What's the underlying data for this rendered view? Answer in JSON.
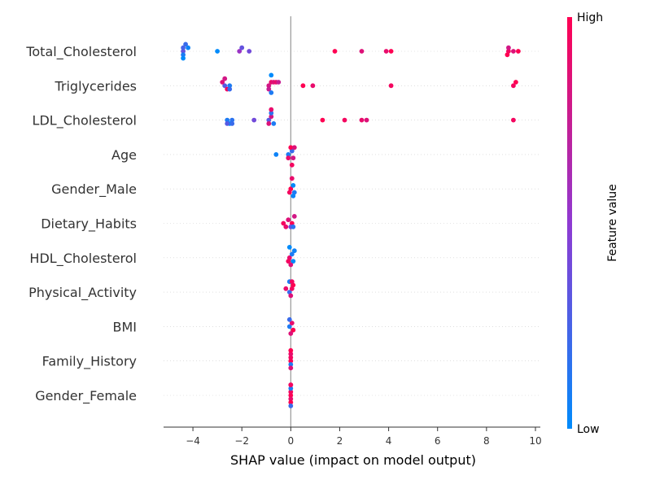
{
  "chart_data": {
    "type": "scatter",
    "xlabel": "SHAP value (impact on model output)",
    "xlim": [
      -5.2,
      10.2
    ],
    "xticks": [
      -4,
      -2,
      0,
      2,
      4,
      6,
      8,
      10
    ],
    "colorbar": {
      "label": "Feature value",
      "high": "High",
      "low": "Low"
    },
    "colors": {
      "low": "#008bfb",
      "high": "#ff0052",
      "grid": "#cccccc",
      "zero_line": "#999999",
      "axis": "#333333"
    },
    "features": [
      {
        "name": "Total_Cholesterol",
        "points": [
          {
            "x": -4.4,
            "v": 0.35
          },
          {
            "x": -4.4,
            "v": 0.25
          },
          {
            "x": -4.4,
            "v": 0.1
          },
          {
            "x": -4.3,
            "v": 0.2
          },
          {
            "x": -4.2,
            "v": 0.05
          },
          {
            "x": -4.4,
            "v": 0.0
          },
          {
            "x": -3.0,
            "v": 0.0
          },
          {
            "x": -2.1,
            "v": 0.55
          },
          {
            "x": -2.0,
            "v": 0.35
          },
          {
            "x": -1.7,
            "v": 0.4
          },
          {
            "x": 1.8,
            "v": 1.0
          },
          {
            "x": 2.9,
            "v": 0.85
          },
          {
            "x": 3.9,
            "v": 0.9
          },
          {
            "x": 4.1,
            "v": 1.0
          },
          {
            "x": 8.9,
            "v": 0.95
          },
          {
            "x": 8.9,
            "v": 0.8
          },
          {
            "x": 8.85,
            "v": 1.0
          },
          {
            "x": 9.1,
            "v": 0.85
          },
          {
            "x": 9.3,
            "v": 1.0
          }
        ]
      },
      {
        "name": "Triglycerides",
        "points": [
          {
            "x": -2.7,
            "v": 0.3
          },
          {
            "x": -2.5,
            "v": 0.1
          },
          {
            "x": -2.8,
            "v": 0.85
          },
          {
            "x": -2.6,
            "v": 0.95
          },
          {
            "x": -2.5,
            "v": 0.2
          },
          {
            "x": -2.7,
            "v": 0.8
          },
          {
            "x": -0.9,
            "v": 0.8
          },
          {
            "x": -0.8,
            "v": 0.9
          },
          {
            "x": -0.9,
            "v": 0.75
          },
          {
            "x": -0.7,
            "v": 0.85
          },
          {
            "x": -0.8,
            "v": 0.1
          },
          {
            "x": -0.6,
            "v": 0.9
          },
          {
            "x": -0.5,
            "v": 0.75
          },
          {
            "x": -0.8,
            "v": 0.0
          },
          {
            "x": 0.5,
            "v": 1.0
          },
          {
            "x": 0.9,
            "v": 0.9
          },
          {
            "x": 4.1,
            "v": 0.95
          },
          {
            "x": 9.1,
            "v": 0.95
          },
          {
            "x": 9.2,
            "v": 1.0
          }
        ]
      },
      {
        "name": "LDL_Cholesterol",
        "points": [
          {
            "x": -2.6,
            "v": 0.1
          },
          {
            "x": -2.4,
            "v": 0.15
          },
          {
            "x": -2.5,
            "v": 0.0
          },
          {
            "x": -2.6,
            "v": 0.3
          },
          {
            "x": -2.4,
            "v": 0.2
          },
          {
            "x": -1.5,
            "v": 0.4
          },
          {
            "x": -0.9,
            "v": 0.3
          },
          {
            "x": -0.8,
            "v": 0.8
          },
          {
            "x": -0.9,
            "v": 0.85
          },
          {
            "x": -0.8,
            "v": 0.15
          },
          {
            "x": -0.7,
            "v": 0.1
          },
          {
            "x": -0.8,
            "v": 0.9
          },
          {
            "x": 1.3,
            "v": 1.0
          },
          {
            "x": 2.2,
            "v": 0.95
          },
          {
            "x": 2.9,
            "v": 0.9
          },
          {
            "x": 3.1,
            "v": 0.85
          },
          {
            "x": 9.1,
            "v": 0.95
          }
        ]
      },
      {
        "name": "Age",
        "points": [
          {
            "x": -0.1,
            "v": 0.1
          },
          {
            "x": 0.05,
            "v": 0.2
          },
          {
            "x": -0.6,
            "v": 0.05
          },
          {
            "x": -0.1,
            "v": 0.9
          },
          {
            "x": 0.0,
            "v": 1.0
          },
          {
            "x": 0.1,
            "v": 0.8
          },
          {
            "x": 0.15,
            "v": 0.85
          },
          {
            "x": 0.05,
            "v": 0.95
          }
        ]
      },
      {
        "name": "Gender_Male",
        "points": [
          {
            "x": 0.0,
            "v": 1.0
          },
          {
            "x": 0.1,
            "v": 0.0
          },
          {
            "x": 0.15,
            "v": 0.1
          },
          {
            "x": -0.05,
            "v": 0.95
          },
          {
            "x": 0.1,
            "v": 0.05
          },
          {
            "x": 0.05,
            "v": 0.9
          }
        ]
      },
      {
        "name": "Dietary_Habits",
        "points": [
          {
            "x": 0.05,
            "v": 1.0
          },
          {
            "x": -0.3,
            "v": 0.95
          },
          {
            "x": -0.1,
            "v": 0.85
          },
          {
            "x": 0.0,
            "v": 0.4
          },
          {
            "x": 0.1,
            "v": 0.15
          },
          {
            "x": -0.2,
            "v": 0.9
          },
          {
            "x": 0.15,
            "v": 0.8
          }
        ]
      },
      {
        "name": "HDL_Cholesterol",
        "points": [
          {
            "x": -0.05,
            "v": 0.9
          },
          {
            "x": 0.05,
            "v": 0.1
          },
          {
            "x": 0.1,
            "v": 0.0
          },
          {
            "x": -0.1,
            "v": 0.95
          },
          {
            "x": 0.0,
            "v": 0.85
          },
          {
            "x": 0.15,
            "v": 0.05
          },
          {
            "x": -0.05,
            "v": 0.0
          }
        ]
      },
      {
        "name": "Physical_Activity",
        "points": [
          {
            "x": -0.05,
            "v": 0.2
          },
          {
            "x": 0.05,
            "v": 0.95
          },
          {
            "x": -0.2,
            "v": 0.9
          },
          {
            "x": 0.0,
            "v": 0.85
          },
          {
            "x": 0.1,
            "v": 1.0
          },
          {
            "x": -0.05,
            "v": 0.1
          },
          {
            "x": 0.05,
            "v": 0.95
          }
        ]
      },
      {
        "name": "BMI",
        "points": [
          {
            "x": -0.05,
            "v": 0.1
          },
          {
            "x": 0.05,
            "v": 0.9
          },
          {
            "x": 0.1,
            "v": 1.0
          },
          {
            "x": -0.05,
            "v": 0.2
          },
          {
            "x": 0.0,
            "v": 0.85
          }
        ]
      },
      {
        "name": "Family_History",
        "points": [
          {
            "x": 0.0,
            "v": 1.0
          },
          {
            "x": 0.0,
            "v": 0.95
          },
          {
            "x": 0.0,
            "v": 0.1
          },
          {
            "x": 0.0,
            "v": 0.9
          },
          {
            "x": 0.0,
            "v": 0.85
          },
          {
            "x": 0.0,
            "v": 1.0
          }
        ]
      },
      {
        "name": "Gender_Female",
        "points": [
          {
            "x": 0.0,
            "v": 1.0
          },
          {
            "x": 0.0,
            "v": 0.95
          },
          {
            "x": 0.0,
            "v": 0.9
          },
          {
            "x": 0.0,
            "v": 0.1
          },
          {
            "x": 0.0,
            "v": 1.0
          },
          {
            "x": 0.0,
            "v": 0.85
          },
          {
            "x": 0.0,
            "v": 0.2
          },
          {
            "x": 0.0,
            "v": 0.95
          }
        ]
      }
    ]
  }
}
